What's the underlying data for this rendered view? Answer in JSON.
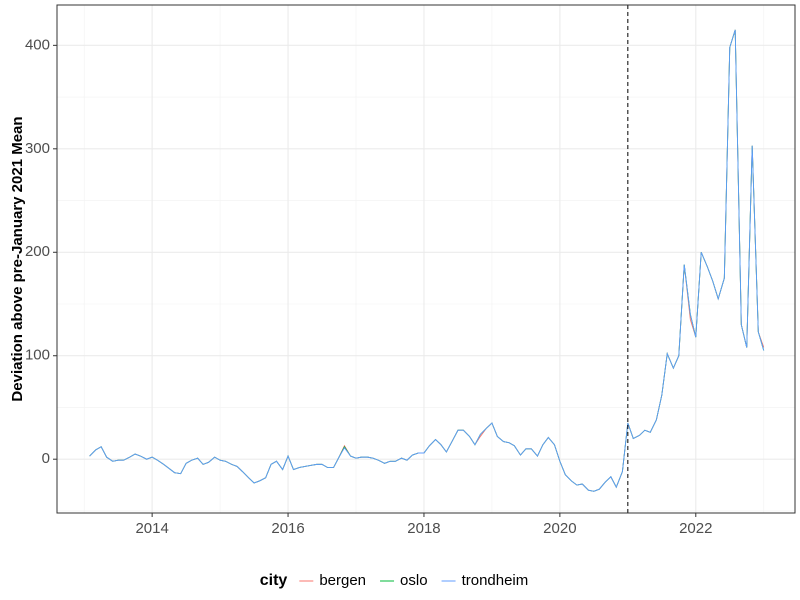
{
  "chart_data": {
    "type": "line",
    "y_label": "Deviation above pre-January 2021 Mean",
    "legend_title": "city",
    "legend_position": "bottom",
    "grid": true,
    "vline": 2021,
    "xlim": [
      2012.6,
      2023.46
    ],
    "xticks": [
      2014,
      2016,
      2018,
      2020,
      2022
    ],
    "ylim": [
      -52,
      439
    ],
    "yticks": [
      0,
      100,
      200,
      300,
      400
    ],
    "x": [
      2013.08,
      2013.17,
      2013.25,
      2013.33,
      2013.42,
      2013.5,
      2013.58,
      2013.67,
      2013.75,
      2013.83,
      2013.92,
      2014,
      2014.08,
      2014.17,
      2014.25,
      2014.33,
      2014.42,
      2014.5,
      2014.58,
      2014.67,
      2014.75,
      2014.83,
      2014.92,
      2015,
      2015.08,
      2015.17,
      2015.25,
      2015.33,
      2015.42,
      2015.5,
      2015.58,
      2015.67,
      2015.75,
      2015.83,
      2015.92,
      2016,
      2016.08,
      2016.17,
      2016.25,
      2016.33,
      2016.42,
      2016.5,
      2016.58,
      2016.67,
      2016.75,
      2016.83,
      2016.92,
      2017,
      2017.08,
      2017.17,
      2017.25,
      2017.33,
      2017.42,
      2017.5,
      2017.58,
      2017.67,
      2017.75,
      2017.83,
      2017.92,
      2018,
      2018.08,
      2018.17,
      2018.25,
      2018.33,
      2018.42,
      2018.5,
      2018.58,
      2018.67,
      2018.75,
      2018.83,
      2018.92,
      2019,
      2019.08,
      2019.17,
      2019.25,
      2019.33,
      2019.42,
      2019.5,
      2019.58,
      2019.67,
      2019.75,
      2019.83,
      2019.92,
      2020,
      2020.08,
      2020.17,
      2020.25,
      2020.33,
      2020.42,
      2020.5,
      2020.58,
      2020.67,
      2020.75,
      2020.83,
      2020.92,
      2021,
      2021.08,
      2021.17,
      2021.25,
      2021.33,
      2021.42,
      2021.5,
      2021.58,
      2021.67,
      2021.75,
      2021.83,
      2021.92,
      2022,
      2022.08,
      2022.17,
      2022.25,
      2022.33,
      2022.42,
      2022.5,
      2022.58,
      2022.67,
      2022.75,
      2022.83,
      2022.92,
      2023
    ],
    "series": [
      {
        "name": "bergen",
        "color": "#F8766D",
        "values": [
          3,
          9,
          12,
          2,
          -2,
          -1,
          -1,
          2,
          5,
          3,
          0,
          2,
          -1,
          -5,
          -9,
          -13,
          -14,
          -4,
          -1,
          1,
          -5,
          -3,
          2,
          -1,
          -2,
          -5,
          -7,
          -12,
          -18,
          -23,
          -21,
          -18,
          -5,
          -2,
          -10,
          3,
          -10,
          -8,
          -7,
          -6,
          -5,
          -5,
          -8,
          -8,
          2,
          13,
          3,
          1,
          2,
          2,
          1,
          -1,
          -4,
          -2,
          -2,
          1,
          -1,
          4,
          6,
          6,
          13,
          19,
          14,
          7,
          18,
          28,
          28,
          22,
          14,
          22,
          30,
          35,
          22,
          17,
          16,
          13,
          4,
          10,
          10,
          3,
          14,
          21,
          14,
          -2,
          -15,
          -21,
          -25,
          -24,
          -30,
          -31,
          -29,
          -22,
          -17,
          -27,
          -12,
          35,
          20,
          23,
          28,
          26,
          38,
          62,
          102,
          88,
          100,
          188,
          135,
          118,
          200,
          186,
          172,
          155,
          175,
          398,
          415,
          130,
          108,
          303,
          123,
          108
        ]
      },
      {
        "name": "oslo",
        "color": "#00BA38",
        "values": [
          3,
          9,
          12,
          2,
          -2,
          -1,
          -1,
          2,
          5,
          3,
          0,
          2,
          -1,
          -5,
          -9,
          -13,
          -14,
          -4,
          -1,
          1,
          -5,
          -3,
          2,
          -1,
          -2,
          -5,
          -7,
          -12,
          -18,
          -23,
          -21,
          -18,
          -5,
          -2,
          -10,
          3,
          -10,
          -8,
          -7,
          -6,
          -5,
          -5,
          -8,
          -8,
          2,
          12,
          3,
          1,
          2,
          2,
          1,
          -1,
          -4,
          -2,
          -2,
          1,
          -1,
          4,
          6,
          6,
          13,
          19,
          14,
          7,
          18,
          28,
          28,
          22,
          14,
          24,
          30,
          35,
          22,
          17,
          16,
          13,
          4,
          10,
          10,
          3,
          14,
          21,
          14,
          -2,
          -15,
          -21,
          -25,
          -24,
          -30,
          -31,
          -29,
          -22,
          -17,
          -27,
          -12,
          35,
          20,
          23,
          28,
          26,
          38,
          62,
          102,
          88,
          100,
          188,
          140,
          118,
          200,
          186,
          172,
          155,
          175,
          398,
          415,
          130,
          108,
          303,
          123,
          105
        ]
      },
      {
        "name": "trondheim",
        "color": "#619CFF",
        "values": [
          3,
          9,
          12,
          2,
          -2,
          -1,
          -1,
          2,
          5,
          3,
          0,
          2,
          -1,
          -5,
          -9,
          -13,
          -14,
          -4,
          -1,
          1,
          -5,
          -3,
          2,
          -1,
          -2,
          -5,
          -7,
          -12,
          -18,
          -23,
          -21,
          -18,
          -5,
          -2,
          -10,
          3,
          -10,
          -8,
          -7,
          -6,
          -5,
          -5,
          -8,
          -8,
          2,
          11,
          3,
          1,
          2,
          2,
          1,
          -1,
          -4,
          -2,
          -2,
          1,
          -1,
          4,
          6,
          6,
          13,
          19,
          14,
          7,
          18,
          28,
          28,
          22,
          14,
          24,
          30,
          35,
          22,
          17,
          16,
          13,
          4,
          10,
          10,
          3,
          14,
          21,
          14,
          -2,
          -15,
          -21,
          -25,
          -24,
          -30,
          -31,
          -29,
          -22,
          -17,
          -27,
          -12,
          35,
          20,
          23,
          28,
          26,
          38,
          62,
          102,
          88,
          100,
          188,
          140,
          118,
          200,
          186,
          172,
          155,
          175,
          398,
          415,
          130,
          108,
          303,
          123,
          105
        ]
      }
    ]
  }
}
